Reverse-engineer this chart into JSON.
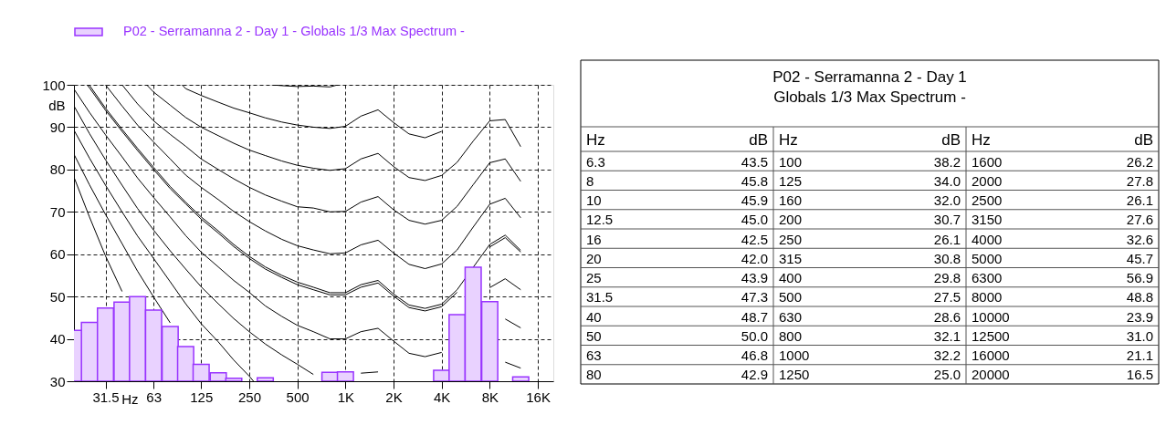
{
  "chart_data": [
    {
      "type": "bar",
      "xlabel": "Hz",
      "ylabel": "dB",
      "xlim": [
        20,
        20000
      ],
      "ylim": [
        30,
        100
      ],
      "log": "x",
      "xticks": [
        31.5,
        63,
        125,
        250,
        500,
        {
          "value": 1000,
          "label": "1K"
        },
        {
          "value": 2000,
          "label": "2K"
        },
        {
          "value": 4000,
          "label": "4K"
        },
        {
          "value": 8000,
          "label": "8K"
        },
        {
          "value": 16000,
          "label": "16K"
        }
      ],
      "yticks": [
        30,
        40,
        50,
        60,
        70,
        80,
        90,
        100
      ],
      "grid": true,
      "legend": "top left",
      "series": [
        {
          "name": "P02 - Serramanna 2 - Day 1 - Globals 1/3 Max Spectrum -",
          "color": "#9933ff",
          "x": [
            20,
            25,
            31.5,
            40,
            50,
            63,
            80,
            100,
            125,
            160,
            200,
            250,
            315,
            400,
            500,
            630,
            800,
            1000,
            1250,
            1600,
            2000,
            2500,
            3150,
            4000,
            5000,
            6300,
            8000,
            10000,
            12500
          ],
          "values": [
            42.0,
            43.9,
            47.3,
            48.7,
            50.0,
            46.8,
            42.9,
            38.2,
            34.0,
            32.0,
            30.7,
            null,
            30.8,
            null,
            null,
            null,
            32.1,
            32.2,
            null,
            null,
            null,
            null,
            null,
            32.6,
            45.7,
            56.9,
            48.8,
            null,
            31.0
          ]
        },
        {
          "type": "line",
          "color": "#000000",
          "x": [
            346,
            400,
            500,
            630,
            800,
            896
          ],
          "values": [
            100,
            99.8,
            99.6,
            99.7,
            99.5,
            100
          ]
        },
        {
          "type": "line",
          "color": "#000000",
          "x": [
            95,
            100,
            125,
            160,
            200,
            250,
            315,
            400,
            500,
            630,
            800,
            1000,
            1250,
            1600,
            2000,
            2500,
            3150,
            4000
          ],
          "values": [
            100,
            99.1,
            97.5,
            95.9,
            94.5,
            93.4,
            92.2,
            91.2,
            90.5,
            90.0,
            89.7,
            90.2,
            92.6,
            94.1,
            91.1,
            88.4,
            87.5,
            89.0
          ]
        },
        {
          "type": "line",
          "color": "#000000",
          "x": [
            57,
            63,
            80,
            100,
            125,
            160,
            200,
            250,
            315,
            400,
            500,
            630,
            800,
            1000,
            1250,
            1600,
            2000,
            2500,
            3150,
            4000,
            5000,
            6300,
            8000,
            10000,
            12500
          ],
          "values": [
            100,
            98.3,
            95.2,
            92.3,
            90.0,
            88.0,
            86.2,
            84.6,
            83.3,
            82.0,
            81.0,
            80.3,
            79.8,
            80.2,
            82.5,
            83.8,
            80.7,
            78.1,
            77.4,
            78.6,
            81.7,
            86.7,
            91.5,
            91.8,
            85.4
          ]
        },
        {
          "type": "line",
          "color": "#000000",
          "x": [
            40,
            50,
            63,
            80,
            100,
            125,
            160,
            200,
            250,
            315,
            400,
            500,
            630,
            800,
            1000,
            1250,
            1600,
            2000,
            2500,
            3150,
            4000,
            5000,
            6300,
            8000,
            10000,
            12500
          ],
          "values": [
            100,
            95.5,
            91.5,
            88.3,
            85.5,
            82.5,
            80.0,
            77.8,
            75.8,
            74.0,
            72.5,
            71.2,
            70.9,
            70.0,
            70.1,
            72.3,
            73.6,
            70.5,
            68.0,
            67.1,
            68.0,
            71.3,
            76.4,
            81.6,
            82.5,
            77.2
          ]
        },
        {
          "type": "line",
          "color": "#000000",
          "x": [
            31.5,
            40,
            50,
            63,
            80,
            100,
            125,
            160,
            200,
            250,
            315,
            400,
            500,
            630,
            800,
            1000,
            1250,
            1600,
            2000,
            2500,
            3150,
            4000,
            5000,
            6300,
            8000,
            10000,
            12500
          ],
          "values": [
            100,
            95.0,
            90.5,
            86.5,
            82.5,
            78.7,
            75.8,
            72.9,
            70.1,
            67.7,
            65.5,
            63.5,
            62.0,
            61.0,
            60.1,
            60.3,
            62.2,
            63.3,
            60.3,
            57.6,
            56.6,
            57.7,
            61.0,
            66.4,
            71.8,
            73.2,
            68.6
          ]
        },
        {
          "type": "line",
          "color": "#000000",
          "x": [
            24.9,
            31.5,
            40,
            50,
            63,
            80,
            100,
            125,
            160,
            200,
            250,
            315,
            400,
            500,
            630,
            800,
            1000,
            1250,
            1600,
            2000,
            2500,
            3150,
            4000,
            5000,
            6300,
            8000,
            10000,
            12500
          ],
          "values": [
            100,
            94.5,
            89.5,
            85.0,
            80.5,
            76.0,
            72.3,
            68.8,
            65.5,
            62.3,
            59.5,
            57.0,
            55.0,
            53.4,
            52.2,
            50.9,
            50.9,
            52.8,
            53.8,
            50.6,
            48.0,
            47.2,
            48.2,
            51.6,
            56.9,
            62.3,
            64.5,
            60.9
          ]
        },
        {
          "type": "line",
          "color": "#000000",
          "x": [
            24.15,
            25,
            31.5,
            40,
            50,
            63,
            80,
            100,
            125,
            160,
            200,
            250,
            315,
            400,
            500,
            630,
            800,
            1000,
            1250,
            1600,
            2000,
            2500,
            3150,
            4000,
            5000,
            6300,
            8000,
            10000,
            12500
          ],
          "values": [
            100,
            99.3,
            94.0,
            89.0,
            84.5,
            80.0,
            75.5,
            71.9,
            68.3,
            65.0,
            61.8,
            59.0,
            56.5,
            54.5,
            52.8,
            51.6,
            50.4,
            50.4,
            52.2,
            53.2,
            50.1,
            47.4,
            46.6,
            47.6,
            51.0,
            null,
            61.7,
            63.9,
            60.5
          ]
        },
        {
          "type": "line",
          "color": "#000000",
          "x": [
            20,
            25,
            31.5,
            40,
            50,
            63,
            80,
            100,
            125,
            160,
            200,
            250,
            315,
            400,
            500,
            630,
            800,
            1000,
            1250,
            1600,
            2000,
            2500,
            3150,
            4000,
            5000,
            6300,
            8000,
            10000,
            12500
          ],
          "values": [
            99.0,
            93.5,
            88.2,
            83.0,
            78.0,
            73.4,
            68.8,
            64.4,
            60.5,
            57.0,
            53.8,
            51.0,
            47.8,
            45.3,
            43.2,
            41.7,
            40.0,
            40.0,
            41.7,
            42.5,
            39.5,
            36.6,
            35.8,
            36.8,
            null,
            null,
            52.1,
            54.2,
            51.6
          ]
        },
        {
          "type": "line",
          "color": "#000000",
          "x": [
            20,
            25,
            31.5,
            40,
            50,
            63,
            80,
            100,
            125,
            160,
            200,
            250,
            315,
            400,
            500,
            630,
            800,
            1000,
            1250,
            1600,
            2000,
            2500,
            3150,
            4000,
            5000,
            6300,
            8000,
            10000,
            12500
          ],
          "values": [
            95.0,
            88.5,
            82.3,
            76.3,
            70.8,
            65.7,
            60.8,
            56.5,
            52.3,
            48.3,
            44.8,
            41.7,
            38.8,
            36.2,
            34.0,
            31.6,
            null,
            null,
            31.9,
            32.2,
            null,
            null,
            null,
            null,
            null,
            null,
            null,
            44.7,
            42.6
          ]
        },
        {
          "type": "line",
          "color": "#000000",
          "x": [
            20,
            25,
            31.5,
            40,
            50,
            63,
            80,
            100,
            125,
            160,
            200,
            250,
            266,
            400,
            10000,
            12500
          ],
          "values": [
            89.3,
            82.7,
            76.3,
            70.0,
            64.3,
            59.0,
            53.5,
            48.3,
            43.6,
            39.3,
            35.0,
            31.2,
            30,
            null,
            34.5,
            33.1
          ]
        },
        {
          "type": "line",
          "color": "#000000",
          "x": [
            20,
            25,
            31.5,
            40,
            50,
            63,
            80
          ],
          "values": [
            83.6,
            76.4,
            69.4,
            62.5,
            56.0,
            49.9,
            43.8
          ]
        },
        {
          "type": "line",
          "color": "#000000",
          "x": [
            20,
            25,
            31.5,
            40
          ],
          "values": [
            78.2,
            68.8,
            59.6,
            51.2
          ]
        }
      ]
    },
    {
      "type": "other",
      "title": "P02 - Serramanna 2 - Day 1\nGlobals 1/3 Max Spectrum -",
      "annotations": [
        "Hz",
        "dB",
        "Hz",
        "dB",
        "Hz",
        "dB",
        "6.3",
        "43.5",
        "8",
        "45.8",
        "10",
        "45.9",
        "12.5",
        "45.0",
        "16",
        "42.5",
        "20",
        "42.0",
        "25",
        "43.9",
        "31.5",
        "47.3",
        "40",
        "48.7",
        "50",
        "50.0",
        "63",
        "46.8",
        "80",
        "42.9",
        "100",
        "38.2",
        "125",
        "34.0",
        "160",
        "32.0",
        "200",
        "30.7",
        "250",
        "26.1",
        "315",
        "30.8",
        "400",
        "29.8",
        "500",
        "27.5",
        "630",
        "28.6",
        "800",
        "32.1",
        "1000",
        "32.2",
        "1250",
        "25.0",
        "1600",
        "26.2",
        "2000",
        "27.8",
        "2500",
        "26.1",
        "3150",
        "27.6",
        "4000",
        "32.6",
        "5000",
        "45.7",
        "6300",
        "56.9",
        "8000",
        "48.8",
        "10000",
        "23.9",
        "12500",
        "31.0",
        "16000",
        "21.1",
        "20000",
        "16.5"
      ]
    }
  ]
}
